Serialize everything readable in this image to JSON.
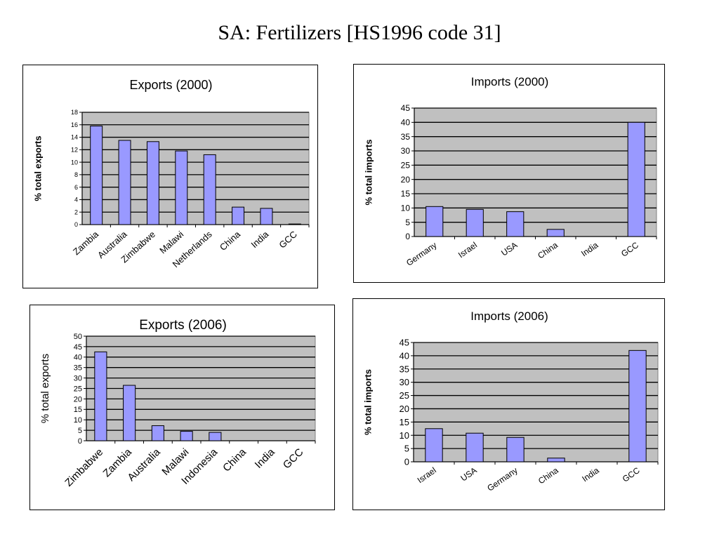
{
  "page": {
    "title": "SA: Fertilizers [HS1996 code 31]"
  },
  "colors": {
    "plot_background": "#c0c0c0",
    "bar_fill": "#9999ff",
    "bar_stroke": "#000000",
    "gridline": "#000000"
  },
  "chart_data": [
    {
      "id": "exports-2000",
      "type": "bar",
      "title": "Exports (2000)",
      "xlabel": "",
      "ylabel": "% total exports",
      "categories": [
        "Zambia",
        "Australia",
        "Zimbabwe",
        "Malawi",
        "Netherlands",
        "China",
        "India",
        "GCC"
      ],
      "values": [
        15.8,
        13.5,
        13.3,
        11.8,
        11.2,
        2.8,
        2.6,
        0.1
      ],
      "ylim": [
        0,
        18
      ],
      "yticks": [
        0,
        2,
        4,
        6,
        8,
        10,
        12,
        14,
        16,
        18
      ],
      "grid": true,
      "legend": "none"
    },
    {
      "id": "imports-2000",
      "type": "bar",
      "title": "Imports (2000)",
      "xlabel": "",
      "ylabel": "% total imports",
      "categories": [
        "Germany",
        "Israel",
        "USA",
        "China",
        "India",
        "GCC"
      ],
      "values": [
        10.5,
        9.5,
        8.7,
        2.5,
        0,
        40
      ],
      "ylim": [
        0,
        45
      ],
      "yticks": [
        0,
        5,
        10,
        15,
        20,
        25,
        30,
        35,
        40,
        45
      ],
      "grid": true,
      "legend": "none"
    },
    {
      "id": "exports-2006",
      "type": "bar",
      "title": "Exports (2006)",
      "xlabel": "",
      "ylabel": "% total exports",
      "categories": [
        "Zimbabwe",
        "Zambia",
        "Australia",
        "Malawi",
        "Indonesia",
        "China",
        "India",
        "GCC"
      ],
      "values": [
        42.5,
        26.5,
        7.2,
        4.5,
        4.0,
        0,
        0,
        0
      ],
      "ylim": [
        0,
        50
      ],
      "yticks": [
        0,
        5,
        10,
        15,
        20,
        25,
        30,
        35,
        40,
        45,
        50
      ],
      "grid": true,
      "legend": "none"
    },
    {
      "id": "imports-2006",
      "type": "bar",
      "title": "Imports (2006)",
      "xlabel": "",
      "ylabel": "% total imports",
      "categories": [
        "Israel",
        "USA",
        "Germany",
        "China",
        "India",
        "GCC"
      ],
      "values": [
        12.5,
        10.8,
        9.2,
        1.4,
        0,
        42
      ],
      "ylim": [
        0,
        45
      ],
      "yticks": [
        0,
        5,
        10,
        15,
        20,
        25,
        30,
        35,
        40,
        45
      ],
      "grid": true,
      "legend": "none"
    }
  ]
}
